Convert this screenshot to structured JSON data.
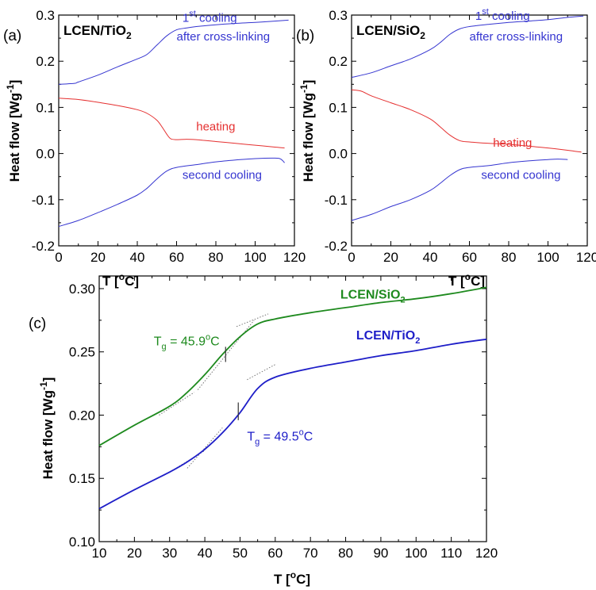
{
  "colors": {
    "first_cooling": "#3535d0",
    "heating": "#e53030",
    "second_cooling": "#3535d0",
    "lcen_sio2": "#1e8a1e",
    "lcen_tio2": "#1e1ec8",
    "axis": "#000000"
  },
  "chart_data": [
    {
      "type": "line",
      "panel_label": "(a)",
      "title": "LCEN/TiO",
      "title_sub": "2",
      "xlabel": "T [",
      "xlabel_sup": "o",
      "xlabel_end": "C]",
      "ylabel": "Heat flow [Wg",
      "ylabel_sup": "-1",
      "ylabel_end": "]",
      "xlim": [
        0,
        120
      ],
      "ylim": [
        -0.2,
        0.3
      ],
      "xticks": [
        0,
        20,
        40,
        60,
        80,
        100,
        120
      ],
      "xtick_labels": [
        "0",
        "20",
        "40",
        "60",
        "80",
        "100",
        "120"
      ],
      "yticks": [
        -0.2,
        -0.1,
        0.0,
        0.1,
        0.2,
        0.3
      ],
      "ytick_labels": [
        "-0.2",
        "-0.1",
        "0.0",
        "0.1",
        "0.2",
        "0.3"
      ],
      "series": [
        {
          "name": "1st cooling after cross-linking",
          "color_key": "first_cooling",
          "x": [
            0,
            8,
            10,
            20,
            30,
            40,
            45,
            50,
            55,
            60,
            65,
            70,
            80,
            90,
            100,
            110,
            117
          ],
          "y": [
            0.15,
            0.152,
            0.155,
            0.17,
            0.188,
            0.205,
            0.215,
            0.235,
            0.255,
            0.268,
            0.272,
            0.275,
            0.279,
            0.282,
            0.284,
            0.287,
            0.289
          ]
        },
        {
          "name": "heating",
          "color_key": "heating",
          "x": [
            0,
            10,
            20,
            30,
            40,
            45,
            50,
            53,
            55,
            57,
            60,
            65,
            70,
            80,
            90,
            100,
            110,
            115
          ],
          "y": [
            0.12,
            0.117,
            0.111,
            0.104,
            0.095,
            0.087,
            0.072,
            0.055,
            0.042,
            0.032,
            0.03,
            0.031,
            0.03,
            0.026,
            0.022,
            0.018,
            0.014,
            0.012
          ]
        },
        {
          "name": "second cooling",
          "color_key": "second_cooling",
          "x": [
            0,
            10,
            20,
            30,
            40,
            45,
            50,
            55,
            60,
            70,
            80,
            90,
            100,
            110,
            113,
            115
          ],
          "y": [
            -0.158,
            -0.145,
            -0.128,
            -0.11,
            -0.09,
            -0.075,
            -0.055,
            -0.038,
            -0.03,
            -0.024,
            -0.018,
            -0.014,
            -0.011,
            -0.01,
            -0.012,
            -0.02
          ]
        }
      ],
      "annotations": [
        {
          "text": "1",
          "sup": "st",
          "text2": " cooling",
          "color_key": "first_cooling",
          "x": 63,
          "y": 0.285
        },
        {
          "text": "after cross-linking",
          "color_key": "first_cooling",
          "x": 60,
          "y": 0.245
        },
        {
          "text": "heating",
          "color_key": "heating",
          "x": 70,
          "y": 0.05
        },
        {
          "text": "second cooling",
          "color_key": "second_cooling",
          "x": 63,
          "y": -0.055
        }
      ]
    },
    {
      "type": "line",
      "panel_label": "(b)",
      "title": "LCEN/SiO",
      "title_sub": "2",
      "xlabel": "T [",
      "xlabel_sup": "o",
      "xlabel_end": "C]",
      "ylabel": "Heat flow [Wg",
      "ylabel_sup": "-1",
      "ylabel_end": "]",
      "xlim": [
        0,
        120
      ],
      "ylim": [
        -0.2,
        0.3
      ],
      "xticks": [
        0,
        20,
        40,
        60,
        80,
        100,
        120
      ],
      "xtick_labels": [
        "0",
        "20",
        "40",
        "60",
        "80",
        "100",
        "120"
      ],
      "yticks": [
        -0.2,
        -0.1,
        0.0,
        0.1,
        0.2,
        0.3
      ],
      "ytick_labels": [
        "-0.2",
        "-0.1",
        "0.0",
        "0.1",
        "0.2",
        "0.3"
      ],
      "series": [
        {
          "name": "1st cooling after cross-linking",
          "color_key": "first_cooling",
          "x": [
            0,
            10,
            20,
            30,
            40,
            45,
            50,
            55,
            60,
            70,
            80,
            90,
            100,
            110,
            118
          ],
          "y": [
            0.165,
            0.175,
            0.19,
            0.205,
            0.225,
            0.24,
            0.258,
            0.27,
            0.275,
            0.28,
            0.284,
            0.287,
            0.29,
            0.295,
            0.298
          ]
        },
        {
          "name": "heating",
          "color_key": "heating",
          "x": [
            0,
            5,
            10,
            20,
            30,
            40,
            45,
            50,
            55,
            60,
            70,
            80,
            90,
            100,
            110,
            117
          ],
          "y": [
            0.138,
            0.135,
            0.125,
            0.11,
            0.095,
            0.075,
            0.058,
            0.04,
            0.028,
            0.025,
            0.022,
            0.02,
            0.016,
            0.012,
            0.007,
            0.003
          ]
        },
        {
          "name": "second cooling",
          "color_key": "second_cooling",
          "x": [
            0,
            10,
            20,
            30,
            40,
            45,
            50,
            55,
            60,
            70,
            80,
            90,
            100,
            105,
            110
          ],
          "y": [
            -0.145,
            -0.132,
            -0.115,
            -0.1,
            -0.08,
            -0.065,
            -0.048,
            -0.035,
            -0.03,
            -0.026,
            -0.02,
            -0.016,
            -0.013,
            -0.012,
            -0.013
          ]
        }
      ],
      "annotations": [
        {
          "text": "1",
          "sup": "st",
          "text2": " cooling",
          "color_key": "first_cooling",
          "x": 63,
          "y": 0.29
        },
        {
          "text": "after cross-linking",
          "color_key": "first_cooling",
          "x": 60,
          "y": 0.245
        },
        {
          "text": "heating",
          "color_key": "heating",
          "x": 72,
          "y": 0.015
        },
        {
          "text": "second cooling",
          "color_key": "second_cooling",
          "x": 66,
          "y": -0.055
        }
      ]
    },
    {
      "type": "line",
      "panel_label": "(c)",
      "xlabel": "T [",
      "xlabel_sup": "o",
      "xlabel_end": "C]",
      "ylabel": "Heat flow [Wg",
      "ylabel_sup": "-1",
      "ylabel_end": "]",
      "xlim": [
        10,
        120
      ],
      "ylim": [
        0.1,
        0.31
      ],
      "xticks": [
        10,
        20,
        30,
        40,
        50,
        60,
        70,
        80,
        90,
        100,
        110,
        120
      ],
      "xtick_labels": [
        "10",
        "20",
        "30",
        "40",
        "50",
        "60",
        "70",
        "80",
        "90",
        "100",
        "110",
        "120"
      ],
      "yticks": [
        0.1,
        0.15,
        0.2,
        0.25,
        0.3
      ],
      "ytick_labels": [
        "0.10",
        "0.15",
        "0.20",
        "0.25",
        "0.30"
      ],
      "series": [
        {
          "name": "LCEN/SiO2",
          "color_key": "lcen_sio2",
          "x": [
            10,
            20,
            30,
            35,
            40,
            45,
            50,
            55,
            60,
            70,
            80,
            90,
            100,
            110,
            120
          ],
          "y": [
            0.176,
            0.192,
            0.207,
            0.218,
            0.232,
            0.248,
            0.262,
            0.272,
            0.276,
            0.281,
            0.285,
            0.289,
            0.292,
            0.296,
            0.301
          ]
        },
        {
          "name": "LCEN/TiO2",
          "color_key": "lcen_tio2",
          "x": [
            10,
            20,
            30,
            35,
            40,
            45,
            50,
            55,
            60,
            70,
            80,
            90,
            100,
            110,
            120
          ],
          "y": [
            0.126,
            0.141,
            0.155,
            0.163,
            0.173,
            0.186,
            0.202,
            0.221,
            0.23,
            0.237,
            0.242,
            0.247,
            0.251,
            0.256,
            0.26
          ]
        }
      ],
      "tangents": [
        {
          "color_key": "lcen_sio2",
          "x": [
            27,
            37
          ],
          "y": [
            0.2,
            0.218
          ]
        },
        {
          "color_key": "lcen_sio2",
          "x": [
            38,
            54
          ],
          "y": [
            0.22,
            0.275
          ]
        },
        {
          "color_key": "lcen_sio2",
          "x": [
            49,
            58
          ],
          "y": [
            0.27,
            0.28
          ]
        },
        {
          "color_key": "lcen_tio2",
          "x": [
            30,
            40
          ],
          "y": [
            0.155,
            0.172
          ]
        },
        {
          "color_key": "lcen_tio2",
          "x": [
            35,
            45
          ],
          "y": [
            0.158,
            0.19
          ]
        },
        {
          "color_key": "lcen_tio2",
          "x": [
            52,
            60
          ],
          "y": [
            0.228,
            0.24
          ]
        }
      ],
      "tg_marks": [
        {
          "color_key": "lcen_sio2",
          "x": 45.9,
          "y1": 0.242,
          "y2": 0.254
        },
        {
          "color_key": "lcen_tio2",
          "x": 49.5,
          "y1": 0.196,
          "y2": 0.21
        }
      ],
      "annotations": [
        {
          "text": "T",
          "sub": "g",
          "text2": " = 45.9",
          "sup": "o",
          "text3": "C",
          "color_key": "lcen_sio2",
          "x": 25.5,
          "y": 0.255,
          "size": 16
        },
        {
          "text": "T",
          "sub": "g",
          "text2": " = 49.5",
          "sup": "o",
          "text3": "C",
          "color_key": "lcen_tio2",
          "x": 52,
          "y": 0.18,
          "size": 16
        },
        {
          "text": "LCEN/SiO",
          "sub": "2",
          "color_key": "lcen_sio2",
          "x": 78.5,
          "y": 0.292,
          "bold": true,
          "size": 16
        },
        {
          "text": "LCEN/TiO",
          "sub": "2",
          "color_key": "lcen_tio2",
          "x": 83,
          "y": 0.26,
          "bold": true,
          "size": 16
        }
      ]
    }
  ]
}
